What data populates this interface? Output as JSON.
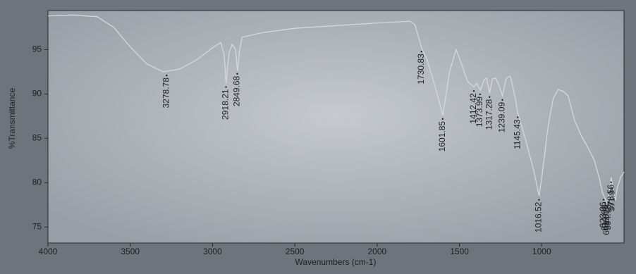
{
  "chart_data": {
    "type": "line",
    "xlabel": "Wavenumbers (cm-1)",
    "ylabel": "%Transmittance",
    "x": [
      4000,
      3850,
      3700,
      3600,
      3500,
      3400,
      3300,
      3200,
      3100,
      3000,
      2950,
      2930,
      2918,
      2900,
      2880,
      2860,
      2849,
      2835,
      2820,
      2700,
      2500,
      2250,
      2000,
      1800,
      1770,
      1750,
      1730,
      1700,
      1650,
      1601,
      1560,
      1520,
      1490,
      1450,
      1412,
      1395,
      1373,
      1350,
      1335,
      1317,
      1300,
      1280,
      1260,
      1239,
      1215,
      1190,
      1160,
      1145,
      1100,
      1050,
      1016,
      990,
      960,
      930,
      900,
      870,
      840,
      800,
      760,
      720,
      680,
      650,
      630,
      615,
      600,
      590,
      578,
      565,
      553,
      540,
      520,
      500
    ],
    "values": [
      98.8,
      98.9,
      98.7,
      97.5,
      95.3,
      93.4,
      92.5,
      92.8,
      93.8,
      95.2,
      95.8,
      94.5,
      91.2,
      94.6,
      95.6,
      95.0,
      92.6,
      95.0,
      96.4,
      96.9,
      97.4,
      97.7,
      98.0,
      98.2,
      97.8,
      96.5,
      95.2,
      94.0,
      91.0,
      87.6,
      92.5,
      95.0,
      93.5,
      91.4,
      90.8,
      91.2,
      90.4,
      91.6,
      91.8,
      90.1,
      91.7,
      91.8,
      91.0,
      89.8,
      91.8,
      92.0,
      89.5,
      87.8,
      85.0,
      81.5,
      78.5,
      82.0,
      86.5,
      89.5,
      90.5,
      90.3,
      89.8,
      87.0,
      85.3,
      84.0,
      82.5,
      80.5,
      78.8,
      78.2,
      77.6,
      78.9,
      80.6,
      79.0,
      78.0,
      79.5,
      80.6,
      81.2
    ],
    "color": "#d6d8de",
    "peaks": [
      3278.78,
      2918.21,
      2849.68,
      1730.83,
      1601.85,
      1412.42,
      1373.99,
      1317.28,
      1239.09,
      1145.43,
      1016.52,
      623.96,
      614.98,
      603.02,
      594.73,
      571.9,
      578.56
    ],
    "xlim": [
      4000,
      500
    ],
    "xticks": [
      4000,
      3500,
      3000,
      2500,
      2000,
      1500,
      1000
    ],
    "ylim": [
      73.2,
      99.4
    ],
    "yticks": [
      75,
      80,
      85,
      90,
      95
    ]
  }
}
